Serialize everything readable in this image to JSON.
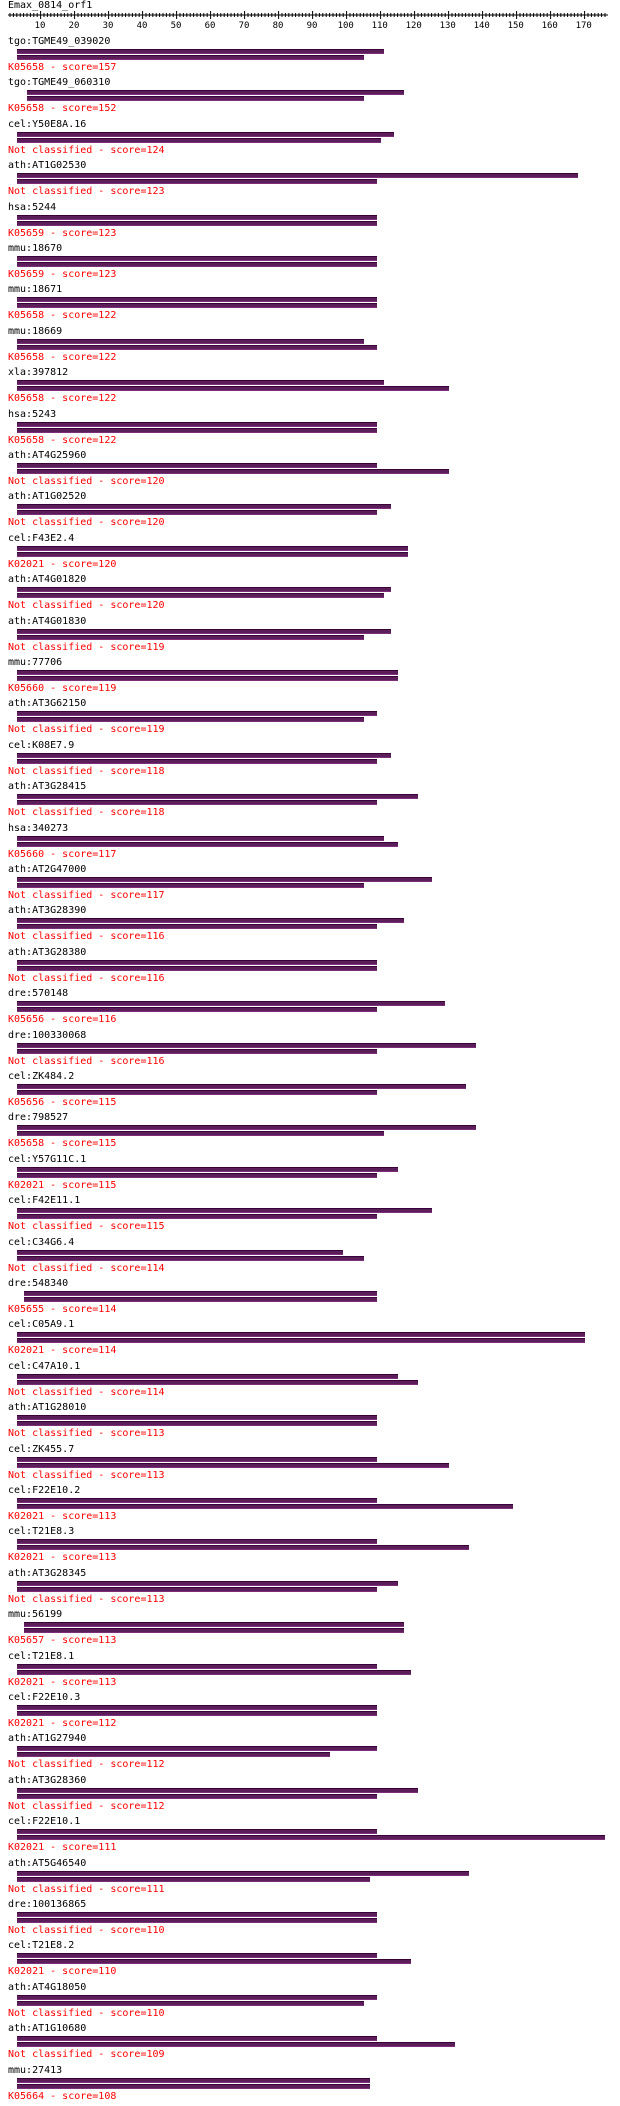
{
  "title": "Emax_0814_orf1",
  "ruler_ticks": [
    "10",
    "20",
    "30",
    "40",
    "50",
    "60",
    "70",
    "80",
    "90",
    "100",
    "110",
    "120",
    "130",
    "140",
    "150",
    "160",
    "170"
  ],
  "hits": [
    {
      "name": "tgo:TGME49_039020",
      "score": "K05658 - score=157",
      "bars": [
        [
          3,
          111
        ],
        [
          3,
          105
        ]
      ]
    },
    {
      "name": "tgo:TGME49_060310",
      "score": "K05658 - score=152",
      "bars": [
        [
          6,
          117
        ],
        [
          6,
          105
        ]
      ]
    },
    {
      "name": "cel:Y50E8A.16",
      "score": "Not classified - score=124",
      "bars": [
        [
          3,
          114
        ],
        [
          3,
          110
        ]
      ]
    },
    {
      "name": "ath:AT1G02530",
      "score": "Not classified - score=123",
      "bars": [
        [
          3,
          168
        ],
        [
          3,
          109
        ]
      ]
    },
    {
      "name": "hsa:5244",
      "score": "K05659 - score=123",
      "bars": [
        [
          3,
          109
        ],
        [
          3,
          109
        ]
      ]
    },
    {
      "name": "mmu:18670",
      "score": "K05659 - score=123",
      "bars": [
        [
          3,
          109
        ],
        [
          3,
          109
        ]
      ]
    },
    {
      "name": "mmu:18671",
      "score": "K05658 - score=122",
      "bars": [
        [
          3,
          109
        ],
        [
          3,
          109
        ]
      ]
    },
    {
      "name": "mmu:18669",
      "score": "K05658 - score=122",
      "bars": [
        [
          3,
          105
        ],
        [
          3,
          109
        ]
      ]
    },
    {
      "name": "xla:397812",
      "score": "K05658 - score=122",
      "bars": [
        [
          3,
          111
        ],
        [
          3,
          130
        ]
      ]
    },
    {
      "name": "hsa:5243",
      "score": "K05658 - score=122",
      "bars": [
        [
          3,
          109
        ],
        [
          3,
          109
        ]
      ]
    },
    {
      "name": "ath:AT4G25960",
      "score": "Not classified - score=120",
      "bars": [
        [
          3,
          109
        ],
        [
          3,
          130
        ]
      ]
    },
    {
      "name": "ath:AT1G02520",
      "score": "Not classified - score=120",
      "bars": [
        [
          3,
          113
        ],
        [
          3,
          109
        ]
      ]
    },
    {
      "name": "cel:F43E2.4",
      "score": "K02021 - score=120",
      "bars": [
        [
          3,
          118
        ],
        [
          3,
          118
        ]
      ]
    },
    {
      "name": "ath:AT4G01820",
      "score": "Not classified - score=120",
      "bars": [
        [
          3,
          113
        ],
        [
          3,
          111
        ]
      ]
    },
    {
      "name": "ath:AT4G01830",
      "score": "Not classified - score=119",
      "bars": [
        [
          3,
          113
        ],
        [
          3,
          105
        ]
      ]
    },
    {
      "name": "mmu:77706",
      "score": "K05660 - score=119",
      "bars": [
        [
          3,
          115
        ],
        [
          3,
          115
        ]
      ]
    },
    {
      "name": "ath:AT3G62150",
      "score": "Not classified - score=119",
      "bars": [
        [
          3,
          109
        ],
        [
          3,
          105
        ]
      ]
    },
    {
      "name": "cel:K08E7.9",
      "score": "Not classified - score=118",
      "bars": [
        [
          3,
          113
        ],
        [
          3,
          109
        ]
      ]
    },
    {
      "name": "ath:AT3G28415",
      "score": "Not classified - score=118",
      "bars": [
        [
          3,
          121
        ],
        [
          3,
          109
        ]
      ]
    },
    {
      "name": "hsa:340273",
      "score": "K05660 - score=117",
      "bars": [
        [
          3,
          111
        ],
        [
          3,
          115
        ]
      ]
    },
    {
      "name": "ath:AT2G47000",
      "score": "Not classified - score=117",
      "bars": [
        [
          3,
          125
        ],
        [
          3,
          105
        ]
      ]
    },
    {
      "name": "ath:AT3G28390",
      "score": "Not classified - score=116",
      "bars": [
        [
          3,
          117
        ],
        [
          3,
          109
        ]
      ]
    },
    {
      "name": "ath:AT3G28380",
      "score": "Not classified - score=116",
      "bars": [
        [
          3,
          109
        ],
        [
          3,
          109
        ]
      ]
    },
    {
      "name": "dre:570148",
      "score": "K05656 - score=116",
      "bars": [
        [
          3,
          129
        ],
        [
          3,
          109
        ]
      ]
    },
    {
      "name": "dre:100330068",
      "score": "Not classified - score=116",
      "bars": [
        [
          3,
          138
        ],
        [
          3,
          109
        ]
      ]
    },
    {
      "name": "cel:ZK484.2",
      "score": "K05656 - score=115",
      "bars": [
        [
          3,
          135
        ],
        [
          3,
          109
        ]
      ]
    },
    {
      "name": "dre:798527",
      "score": "K05658 - score=115",
      "bars": [
        [
          3,
          138
        ],
        [
          3,
          111
        ]
      ]
    },
    {
      "name": "cel:Y57G11C.1",
      "score": "K02021 - score=115",
      "bars": [
        [
          3,
          115
        ],
        [
          3,
          109
        ]
      ]
    },
    {
      "name": "cel:F42E11.1",
      "score": "Not classified - score=115",
      "bars": [
        [
          3,
          125
        ],
        [
          3,
          109
        ]
      ]
    },
    {
      "name": "cel:C34G6.4",
      "score": "Not classified - score=114",
      "bars": [
        [
          3,
          99
        ],
        [
          3,
          105
        ]
      ]
    },
    {
      "name": "dre:548340",
      "score": "K05655 - score=114",
      "bars": [
        [
          5,
          109
        ],
        [
          5,
          109
        ]
      ]
    },
    {
      "name": "cel:C05A9.1",
      "score": "K02021 - score=114",
      "bars": [
        [
          3,
          170
        ],
        [
          3,
          170
        ]
      ]
    },
    {
      "name": "cel:C47A10.1",
      "score": "Not classified - score=114",
      "bars": [
        [
          3,
          115
        ],
        [
          3,
          121
        ]
      ]
    },
    {
      "name": "ath:AT1G28010",
      "score": "Not classified - score=113",
      "bars": [
        [
          3,
          109
        ],
        [
          3,
          109
        ]
      ]
    },
    {
      "name": "cel:ZK455.7",
      "score": "Not classified - score=113",
      "bars": [
        [
          3,
          109
        ],
        [
          3,
          130
        ]
      ]
    },
    {
      "name": "cel:F22E10.2",
      "score": "K02021 - score=113",
      "bars": [
        [
          3,
          109
        ],
        [
          3,
          149
        ]
      ]
    },
    {
      "name": "cel:T21E8.3",
      "score": "K02021 - score=113",
      "bars": [
        [
          3,
          109
        ],
        [
          3,
          136
        ]
      ]
    },
    {
      "name": "ath:AT3G28345",
      "score": "Not classified - score=113",
      "bars": [
        [
          3,
          115
        ],
        [
          3,
          109
        ]
      ]
    },
    {
      "name": "mmu:56199",
      "score": "K05657 - score=113",
      "bars": [
        [
          5,
          117
        ],
        [
          5,
          117
        ]
      ]
    },
    {
      "name": "cel:T21E8.1",
      "score": "K02021 - score=113",
      "bars": [
        [
          3,
          109
        ],
        [
          3,
          119
        ]
      ]
    },
    {
      "name": "cel:F22E10.3",
      "score": "K02021 - score=112",
      "bars": [
        [
          3,
          109
        ],
        [
          3,
          109
        ]
      ]
    },
    {
      "name": "ath:AT1G27940",
      "score": "Not classified - score=112",
      "bars": [
        [
          3,
          109
        ],
        [
          3,
          95
        ]
      ]
    },
    {
      "name": "ath:AT3G28360",
      "score": "Not classified - score=112",
      "bars": [
        [
          3,
          121
        ],
        [
          3,
          109
        ]
      ]
    },
    {
      "name": "cel:F22E10.1",
      "score": "K02021 - score=111",
      "bars": [
        [
          3,
          109
        ],
        [
          3,
          176
        ]
      ]
    },
    {
      "name": "ath:AT5G46540",
      "score": "Not classified - score=111",
      "bars": [
        [
          3,
          136
        ],
        [
          3,
          107
        ]
      ]
    },
    {
      "name": "dre:100136865",
      "score": "Not classified - score=110",
      "bars": [
        [
          3,
          109
        ],
        [
          3,
          109
        ]
      ]
    },
    {
      "name": "cel:T21E8.2",
      "score": "K02021 - score=110",
      "bars": [
        [
          3,
          109
        ],
        [
          3,
          119
        ]
      ]
    },
    {
      "name": "ath:AT4G18050",
      "score": "Not classified - score=110",
      "bars": [
        [
          3,
          109
        ],
        [
          3,
          105
        ]
      ]
    },
    {
      "name": "ath:AT1G10680",
      "score": "Not classified - score=109",
      "bars": [
        [
          3,
          109
        ],
        [
          3,
          132
        ]
      ]
    },
    {
      "name": "mmu:27413",
      "score": "K05664 - score=108",
      "bars": [
        [
          3,
          107
        ],
        [
          3,
          107
        ]
      ]
    }
  ]
}
